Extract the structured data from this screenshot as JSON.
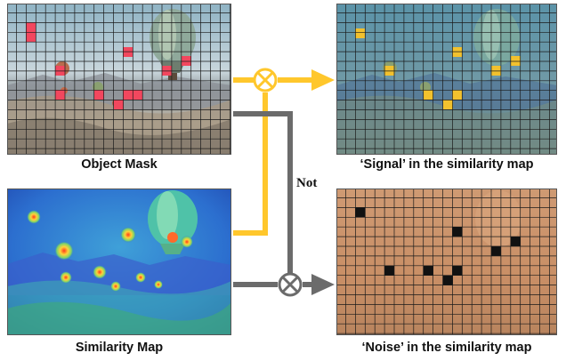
{
  "captions": {
    "object_mask": "Object Mask",
    "signal_map": "‘Signal’ in the similarity map",
    "similarity_map": "Similarity Map",
    "noise_map": "‘Noise’ in the similarity map"
  },
  "operators": {
    "not_label": "Not",
    "multiply_symbol": "⊗"
  },
  "colors": {
    "signal_flow": "#FFC72C",
    "noise_flow": "#6B6B6B",
    "mask_cell": "#F2475E",
    "signal_cell": "#F2C12E",
    "noise_cell": "#111111",
    "grid_line": "#1a1a1a"
  }
}
